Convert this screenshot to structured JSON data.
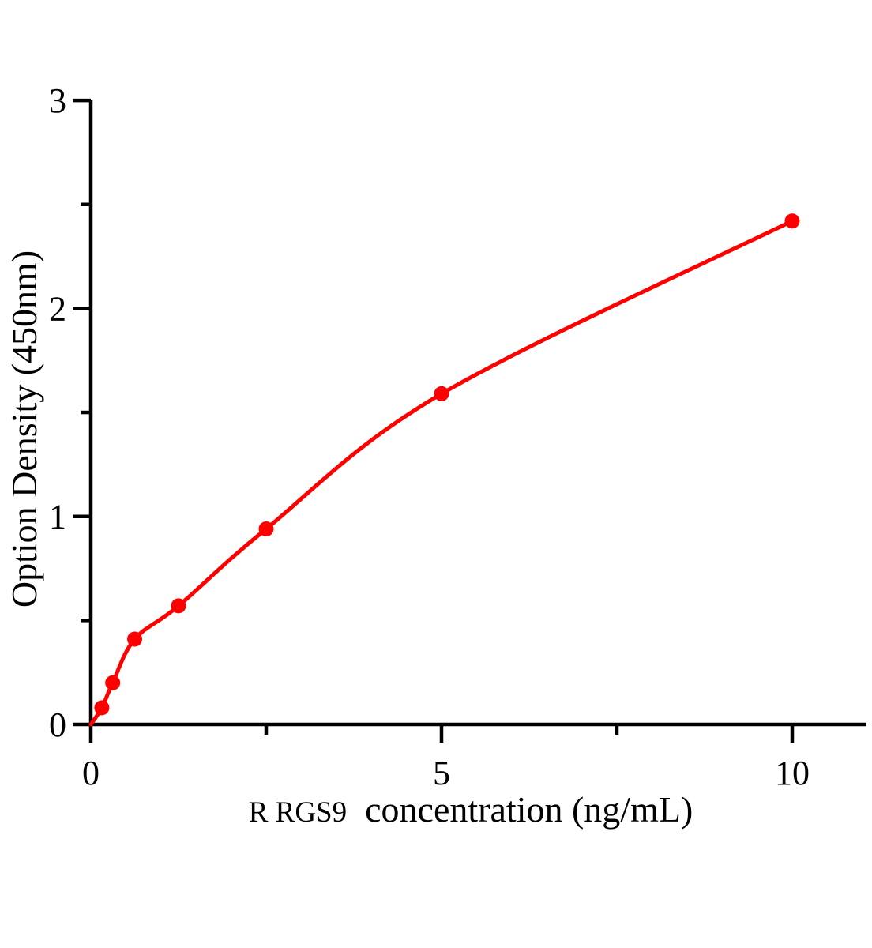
{
  "chart_data": {
    "type": "scatter",
    "title": "",
    "xlabel_prefix": "R RGS9",
    "xlabel_main": "  concentration（ng/mL）",
    "ylabel": "Option Density（450nm）",
    "x": [
      0.156,
      0.312,
      0.625,
      1.25,
      2.5,
      5,
      10
    ],
    "y": [
      0.08,
      0.2,
      0.41,
      0.57,
      0.94,
      1.59,
      2.42
    ],
    "curve_start": {
      "x": 0,
      "y": 0
    },
    "fit_curve": true,
    "marker": "circle",
    "xlim": [
      0,
      11.05
    ],
    "ylim": [
      0,
      3
    ],
    "x_major_ticks": [
      0,
      5,
      10
    ],
    "x_tick_labels": [
      "0",
      "5",
      "10"
    ],
    "x_minor_ticks": [
      2.5,
      7.5
    ],
    "y_major_ticks": [
      0,
      1,
      2,
      3
    ],
    "y_tick_labels": [
      "0",
      "1",
      "2",
      "3"
    ],
    "y_minor_ticks": [
      0.5,
      1.5,
      2.5
    ],
    "grid": false,
    "legend": null,
    "colors": {
      "series": "#ff0000",
      "axis": "#000000",
      "text": "#000000",
      "background": "#ffffff"
    }
  }
}
